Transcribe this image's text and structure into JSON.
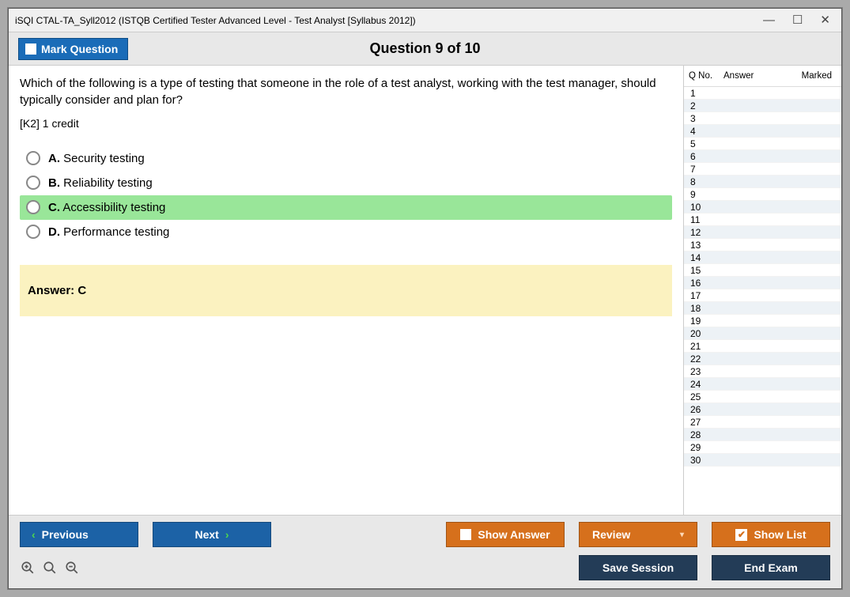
{
  "window": {
    "title": "iSQI CTAL-TA_Syll2012 (ISTQB Certified Tester Advanced Level - Test Analyst [Syllabus 2012])"
  },
  "header": {
    "mark_label": "Mark Question",
    "question_title": "Question 9 of 10"
  },
  "question": {
    "text": "Which of the following is a type of testing that someone in the role of a test analyst, working with the test manager, should typically consider and plan for?",
    "credit": "[K2] 1 credit",
    "options": [
      {
        "letter": "A.",
        "text": " Security testing",
        "selected": false
      },
      {
        "letter": "B.",
        "text": " Reliability testing",
        "selected": false
      },
      {
        "letter": "C.",
        "text": " Accessibility testing",
        "selected": true
      },
      {
        "letter": "D.",
        "text": " Performance testing",
        "selected": false
      }
    ],
    "answer_label": "Answer: C"
  },
  "nav": {
    "headers": {
      "qno": "Q No.",
      "answer": "Answer",
      "marked": "Marked"
    },
    "total_rows": 30
  },
  "footer": {
    "previous": "Previous",
    "next": "Next",
    "show_answer": "Show Answer",
    "review": "Review",
    "show_list": "Show List",
    "save_session": "Save Session",
    "end_exam": "End Exam"
  },
  "colors": {
    "blue": "#1c62a6",
    "orange": "#d6701c",
    "dark": "#233c57",
    "selected_bg": "#99e699",
    "answer_bg": "#fbf2c0"
  }
}
